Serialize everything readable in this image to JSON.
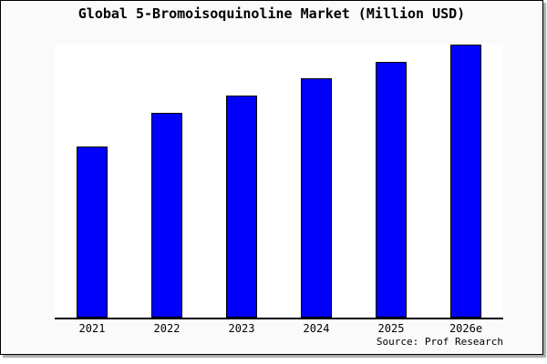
{
  "chart_data": {
    "type": "bar",
    "title": "Global 5-Bromoisoquinoline Market (Million USD)",
    "categories": [
      "2021",
      "2022",
      "2023",
      "2024",
      "2025",
      "2026e"
    ],
    "values": [
      62.7,
      75.0,
      81.3,
      87.7,
      93.7,
      100.0
    ],
    "value_basis": "percent of tallest bar; chart shows no y-axis scale or gridlines",
    "xlabel": "",
    "ylabel": "",
    "grid": false,
    "y_axis_visible": false,
    "bar_color": "#0000fb",
    "bar_border_color": "#000000",
    "plot_background": "#ffffff",
    "canvas_background": "#fafafa",
    "source_label": "Source: Prof Research"
  }
}
